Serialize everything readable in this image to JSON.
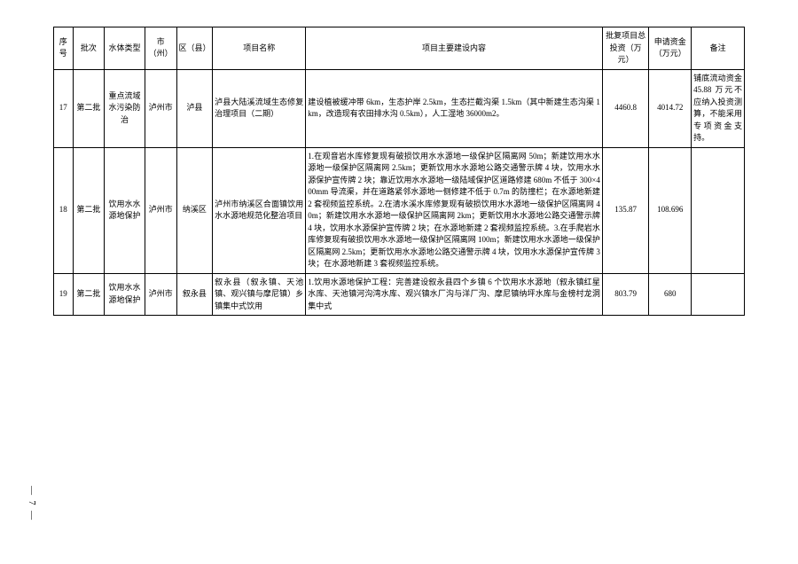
{
  "headers": {
    "seq": "序号",
    "batch": "批次",
    "type": "水体类型",
    "city": "市（州）",
    "county": "区（县）",
    "project": "项目名称",
    "content": "项目主要建设内容",
    "investment": "批复项目总投资（万元）",
    "apply": "申请资金（万元）",
    "remark": "备注"
  },
  "rows": [
    {
      "seq": "17",
      "batch": "第二批",
      "type": "重点流域水污染防治",
      "city": "泸州市",
      "county": "泸县",
      "project": "泸县大陆溪流域生态修复治理项目（二期）",
      "content": "建设植被缓冲带 6km，生态护岸 2.5km，生态拦截沟渠 1.5km（其中新建生态沟渠 1km，改造现有农田排水沟 0.5km），人工湿地 36000m2。",
      "investment": "4460.8",
      "apply": "4014.72",
      "remark": "铺底流动资金 45.88 万元不应纳入投资测算，不能采用专项资金支持。"
    },
    {
      "seq": "18",
      "batch": "第二批",
      "type": "饮用水水源地保护",
      "city": "泸州市",
      "county": "纳溪区",
      "project": "泸州市纳溪区合面镇饮用水水源地规范化整治项目",
      "content": "1.在观音岩水库修复现有破损饮用水水源地一级保护区隔离网 50m；新建饮用水水源地一级保护区隔离网 2.5km；更新饮用水水源地公路交通警示牌 4 块，饮用水水源保护宣传牌 2 块；靠近饮用水水源地一级陆域保护区道路修建 680m 不低于 300×400mm 导流渠，并在道路紧邻水源地一侧修建不低于 0.7m 的防撞栏；在水源地新建 2 套视频监控系统。2.在清水溪水库修复现有破损饮用水水源地一级保护区隔离网 40m；新建饮用水水源地一级保护区隔离网 2km；更新饮用水水源地公路交通警示牌 4 块，饮用水水源保护宣传牌 2 块；在水源地新建 2 套视频监控系统。3.在手爬岩水库修复现有破损饮用水水源地一级保护区隔离网 100m；新建饮用水水源地一级保护区隔离网 2.5km；更新饮用水水源地公路交通警示牌 4 块，饮用水水源保护宣传牌 3 块；在水源地新建 3 套视频监控系统。",
      "investment": "135.87",
      "apply": "108.696",
      "remark": ""
    },
    {
      "seq": "19",
      "batch": "第二批",
      "type": "饮用水水源地保护",
      "city": "泸州市",
      "county": "叙永县",
      "project": "叙永县（叙永镇、天池镇、观兴镇与摩尼镇）乡镇集中式饮用",
      "content": "1.饮用水源地保护工程：完善建设叙永县四个乡镇 6 个饮用水水源地（叙永镇红星水库、天池镇河沟湾水库、观兴镇水厂沟与洋厂沟、摩尼镇纳坪水库与金榜村龙洞集中式",
      "investment": "803.79",
      "apply": "680",
      "remark": ""
    }
  ],
  "pageNumber": "— 7 —"
}
